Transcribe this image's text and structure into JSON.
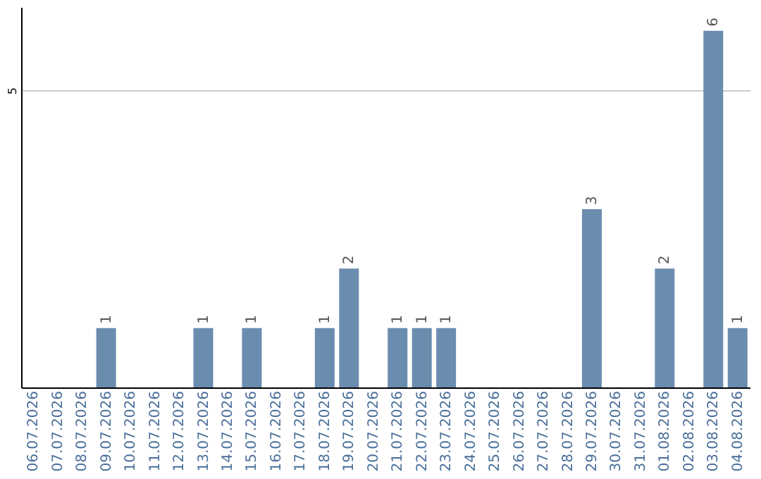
{
  "chart_data": {
    "type": "bar",
    "categories": [
      "06.07.2026",
      "07.07.2026",
      "08.07.2026",
      "09.07.2026",
      "10.07.2026",
      "11.07.2026",
      "12.07.2026",
      "13.07.2026",
      "14.07.2026",
      "15.07.2026",
      "16.07.2026",
      "17.07.2026",
      "18.07.2026",
      "19.07.2026",
      "20.07.2026",
      "21.07.2026",
      "22.07.2026",
      "23.07.2026",
      "24.07.2026",
      "25.07.2026",
      "26.07.2026",
      "27.07.2026",
      "28.07.2026",
      "29.07.2026",
      "30.07.2026",
      "31.07.2026",
      "01.08.2026",
      "02.08.2026",
      "03.08.2026",
      "04.08.2026"
    ],
    "values": [
      0,
      0,
      0,
      1,
      0,
      0,
      0,
      1,
      0,
      1,
      0,
      0,
      1,
      2,
      0,
      1,
      1,
      1,
      0,
      0,
      0,
      0,
      0,
      3,
      0,
      0,
      2,
      0,
      6,
      1
    ],
    "value_labels": [
      null,
      null,
      null,
      "1",
      null,
      null,
      null,
      "1",
      null,
      "1",
      null,
      null,
      "1",
      "2",
      null,
      "1",
      "1",
      "1",
      null,
      null,
      null,
      null,
      null,
      "3",
      null,
      null,
      "2",
      null,
      "6",
      "1"
    ],
    "color": "#6a8caf",
    "ylim": [
      0,
      6.4
    ],
    "yticks": [
      5
    ],
    "grid": "y"
  }
}
